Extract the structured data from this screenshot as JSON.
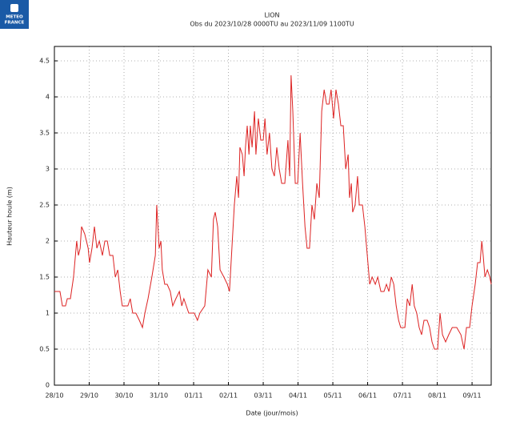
{
  "chart_data": {
    "type": "line",
    "logo": [
      "METEO",
      "FRANCE"
    ],
    "title": "LION",
    "subtitle": "Obs du 2023/10/28 0000TU au 2023/11/09 1100TU",
    "x_label": "Date (jour/mois)",
    "y_label": "Hauteur houle (m)",
    "color": "#dd2222",
    "grid": true,
    "xlim": [
      0,
      12.55
    ],
    "ylim": [
      0,
      4.7
    ],
    "xticks": [
      {
        "value": 0,
        "label": "28/10"
      },
      {
        "value": 1,
        "label": "29/10"
      },
      {
        "value": 2,
        "label": "30/10"
      },
      {
        "value": 3,
        "label": "31/10"
      },
      {
        "value": 4,
        "label": "01/11"
      },
      {
        "value": 5,
        "label": "02/11"
      },
      {
        "value": 6,
        "label": "03/11"
      },
      {
        "value": 7,
        "label": "04/11"
      },
      {
        "value": 8,
        "label": "05/11"
      },
      {
        "value": 9,
        "label": "06/11"
      },
      {
        "value": 10,
        "label": "07/11"
      },
      {
        "value": 11,
        "label": "08/11"
      },
      {
        "value": 12,
        "label": "09/11"
      }
    ],
    "yticks": [
      0,
      0.5,
      1,
      1.5,
      2,
      2.5,
      3,
      3.5,
      4,
      4.5
    ],
    "x": [
      0,
      0.16,
      0.23,
      0.32,
      0.37,
      0.46,
      0.55,
      0.64,
      0.69,
      0.74,
      0.78,
      0.87,
      0.97,
      1.01,
      1.08,
      1.15,
      1.22,
      1.29,
      1.38,
      1.45,
      1.52,
      1.59,
      1.68,
      1.75,
      1.82,
      1.89,
      1.95,
      2.11,
      2.18,
      2.25,
      2.34,
      2.44,
      2.53,
      2.6,
      2.69,
      2.8,
      2.9,
      2.94,
      3.01,
      3.06,
      3.1,
      3.17,
      3.24,
      3.33,
      3.4,
      3.49,
      3.59,
      3.66,
      3.72,
      3.79,
      3.86,
      4.02,
      4.11,
      4.18,
      4.32,
      4.41,
      4.51,
      4.57,
      4.62,
      4.69,
      4.76,
      4.87,
      4.97,
      5.03,
      5.1,
      5.17,
      5.24,
      5.29,
      5.33,
      5.4,
      5.45,
      5.49,
      5.54,
      5.59,
      5.63,
      5.68,
      5.75,
      5.79,
      5.86,
      5.93,
      6.0,
      6.05,
      6.11,
      6.18,
      6.25,
      6.32,
      6.39,
      6.46,
      6.53,
      6.62,
      6.71,
      6.76,
      6.8,
      6.85,
      6.92,
      6.99,
      7.06,
      7.13,
      7.2,
      7.26,
      7.33,
      7.4,
      7.47,
      7.54,
      7.61,
      7.68,
      7.75,
      7.82,
      7.89,
      7.95,
      8.02,
      8.09,
      8.16,
      8.23,
      8.3,
      8.37,
      8.44,
      8.48,
      8.53,
      8.57,
      8.64,
      8.71,
      8.76,
      8.85,
      8.92,
      8.99,
      9.06,
      9.13,
      9.22,
      9.29,
      9.38,
      9.47,
      9.54,
      9.61,
      9.68,
      9.75,
      9.82,
      9.89,
      9.95,
      10.07,
      10.14,
      10.21,
      10.28,
      10.34,
      10.41,
      10.48,
      10.55,
      10.62,
      10.71,
      10.78,
      10.85,
      10.92,
      11.01,
      11.08,
      11.15,
      11.24,
      11.33,
      11.43,
      11.56,
      11.68,
      11.77,
      11.84,
      11.93,
      12.0,
      12.09,
      12.16,
      12.23,
      12.28,
      12.32,
      12.37,
      12.44,
      12.51,
      12.55
    ],
    "values": [
      1.3,
      1.3,
      1.1,
      1.1,
      1.2,
      1.2,
      1.5,
      2.0,
      1.8,
      1.9,
      2.2,
      2.1,
      1.9,
      1.7,
      1.9,
      2.2,
      1.9,
      2.0,
      1.8,
      2.0,
      2.0,
      1.8,
      1.8,
      1.5,
      1.6,
      1.3,
      1.1,
      1.1,
      1.2,
      1.0,
      1.0,
      0.9,
      0.8,
      1.0,
      1.2,
      1.5,
      1.8,
      2.5,
      1.9,
      2.0,
      1.6,
      1.4,
      1.4,
      1.3,
      1.1,
      1.2,
      1.3,
      1.1,
      1.2,
      1.1,
      1.0,
      1.0,
      0.9,
      1.0,
      1.1,
      1.6,
      1.5,
      2.3,
      2.4,
      2.2,
      1.6,
      1.5,
      1.4,
      1.3,
      1.9,
      2.5,
      2.9,
      2.6,
      3.3,
      3.2,
      2.9,
      3.3,
      3.6,
      3.2,
      3.6,
      3.3,
      3.8,
      3.2,
      3.7,
      3.4,
      3.4,
      3.7,
      3.2,
      3.5,
      3.0,
      2.9,
      3.3,
      3.0,
      2.8,
      2.8,
      3.4,
      2.9,
      4.3,
      3.8,
      2.8,
      2.8,
      3.5,
      2.8,
      2.2,
      1.9,
      1.9,
      2.5,
      2.3,
      2.8,
      2.6,
      3.8,
      4.1,
      3.9,
      3.9,
      4.1,
      3.7,
      4.1,
      3.9,
      3.6,
      3.6,
      3.0,
      3.2,
      2.6,
      2.8,
      2.4,
      2.5,
      2.9,
      2.5,
      2.5,
      2.2,
      1.8,
      1.4,
      1.5,
      1.4,
      1.5,
      1.3,
      1.3,
      1.4,
      1.3,
      1.5,
      1.4,
      1.1,
      0.9,
      0.8,
      0.8,
      1.2,
      1.1,
      1.4,
      1.1,
      1.0,
      0.8,
      0.7,
      0.9,
      0.9,
      0.8,
      0.6,
      0.5,
      0.5,
      1.0,
      0.7,
      0.6,
      0.7,
      0.8,
      0.8,
      0.7,
      0.5,
      0.8,
      0.8,
      1.1,
      1.4,
      1.7,
      1.7,
      2.0,
      1.8,
      1.5,
      1.6,
      1.5,
      1.4
    ]
  }
}
